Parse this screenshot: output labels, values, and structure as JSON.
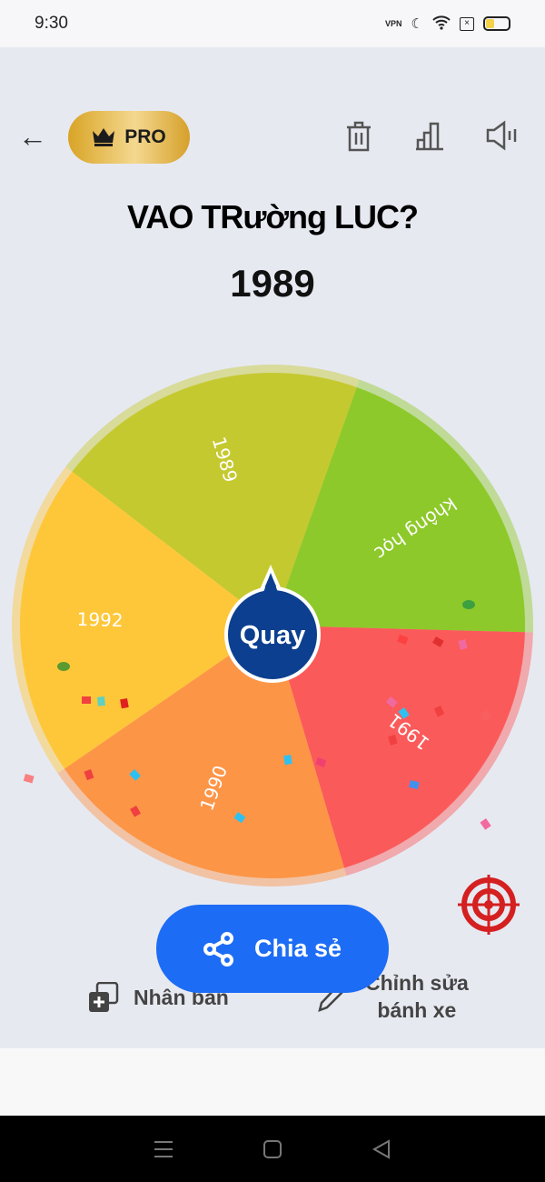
{
  "status_bar": {
    "time": "9:30",
    "vpn": "VPN"
  },
  "toolbar": {
    "pro_label": "PRO",
    "icons": [
      "back-arrow-icon",
      "crown-icon",
      "trash-icon",
      "stats-icon",
      "sound-icon"
    ]
  },
  "wheel_title": "VAO TRường LUC?",
  "result": "1989",
  "wheel": {
    "center_label": "Quay",
    "segments": [
      {
        "label": "1989",
        "color": "#c5c930"
      },
      {
        "label": "không học",
        "color": "#8dc92a"
      },
      {
        "label": "1991",
        "color": "#fb5a5a"
      },
      {
        "label": "1990",
        "color": "#fd9547"
      },
      {
        "label": "1992",
        "color": "#fec73a"
      }
    ]
  },
  "actions": {
    "share": "Chia sẻ",
    "duplicate": "Nhân bản",
    "edit_line1": "Chỉnh sửa",
    "edit_line2": "bánh xe"
  },
  "colors": {
    "accent": "#1d6cf5",
    "center": "#0c3f8f",
    "target": "#d42020"
  }
}
